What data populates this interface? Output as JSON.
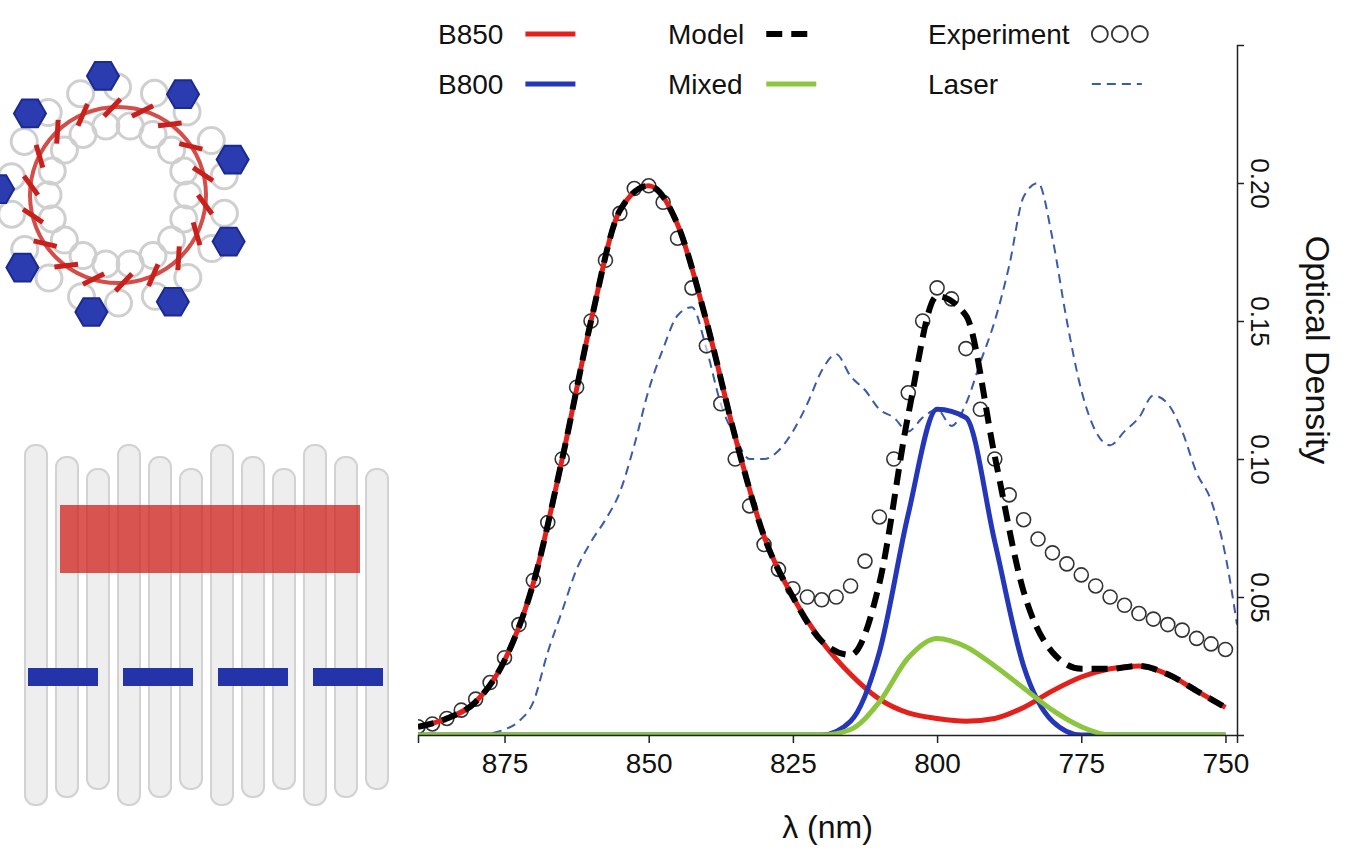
{
  "chart_data": {
    "type": "line",
    "xlabel": "λ (nm)",
    "ylabel": "Optical Density",
    "xlim": [
      890,
      748
    ],
    "xticks": [
      875,
      850,
      825,
      800,
      775,
      750
    ],
    "ylim": [
      0,
      0.25
    ],
    "yticks": [
      0.05,
      {
        "value": 0.1,
        "label": "0.10"
      },
      0.15,
      {
        "value": 0.2,
        "label": "0.20"
      }
    ],
    "grid": false,
    "legend": "top",
    "series": [
      {
        "name": "B850",
        "color": "#e3211c",
        "line_style": "solid",
        "x": [
          890,
          885,
          880,
          875,
          870,
          865,
          860,
          855,
          850,
          845,
          840,
          835,
          830,
          825,
          820,
          815,
          810,
          805,
          800,
          795,
          790,
          785,
          780,
          775,
          770,
          765,
          760,
          755,
          750
        ],
        "values": [
          0.003,
          0.006,
          0.012,
          0.027,
          0.055,
          0.1,
          0.15,
          0.19,
          0.199,
          0.185,
          0.15,
          0.108,
          0.072,
          0.05,
          0.034,
          0.022,
          0.013,
          0.008,
          0.006,
          0.005,
          0.006,
          0.01,
          0.016,
          0.021,
          0.024,
          0.025,
          0.022,
          0.016,
          0.01
        ]
      },
      {
        "name": "B800",
        "color": "#2337b8",
        "line_style": "solid",
        "x": [
          890,
          885,
          880,
          875,
          870,
          865,
          860,
          855,
          850,
          845,
          840,
          835,
          830,
          825,
          820,
          815,
          810,
          805,
          800,
          795,
          790,
          785,
          780,
          775,
          770,
          765,
          760,
          755,
          750
        ],
        "values": [
          0,
          0,
          0,
          0,
          0,
          0,
          0,
          0,
          0,
          0,
          0,
          0,
          0,
          0,
          0,
          0.005,
          0.03,
          0.08,
          0.118,
          0.115,
          0.07,
          0.025,
          0.005,
          0,
          0,
          0,
          0,
          0,
          0
        ]
      },
      {
        "name": "Model",
        "color": "#000000",
        "line_style": "dashed",
        "x": [
          890,
          885,
          880,
          875,
          870,
          865,
          860,
          855,
          850,
          845,
          840,
          835,
          830,
          825,
          820,
          815,
          810,
          805,
          800,
          795,
          790,
          785,
          780,
          775,
          770,
          765,
          760,
          755,
          750
        ],
        "values": [
          0.003,
          0.006,
          0.012,
          0.027,
          0.055,
          0.1,
          0.15,
          0.19,
          0.199,
          0.185,
          0.15,
          0.108,
          0.072,
          0.05,
          0.034,
          0.029,
          0.055,
          0.116,
          0.159,
          0.152,
          0.101,
          0.052,
          0.03,
          0.024,
          0.024,
          0.025,
          0.022,
          0.016,
          0.01
        ]
      },
      {
        "name": "Mixed",
        "color": "#8cc63e",
        "line_style": "solid",
        "x": [
          890,
          885,
          880,
          875,
          870,
          865,
          860,
          855,
          850,
          845,
          840,
          835,
          830,
          825,
          820,
          815,
          810,
          805,
          800,
          795,
          790,
          785,
          780,
          775,
          770,
          765,
          760,
          755,
          750
        ],
        "values": [
          0,
          0,
          0,
          0,
          0,
          0,
          0,
          0,
          0,
          0,
          0,
          0,
          0,
          0,
          0,
          0.002,
          0.012,
          0.028,
          0.035,
          0.032,
          0.025,
          0.017,
          0.009,
          0.003,
          0,
          0,
          0,
          0,
          0
        ]
      },
      {
        "name": "Experiment",
        "color": "#333333",
        "marker": "circle",
        "x": [
          890,
          887.5,
          885,
          882.5,
          880,
          877.5,
          875,
          872.5,
          870,
          867.5,
          865,
          862.5,
          860,
          857.5,
          855,
          852.5,
          850,
          847.5,
          845,
          842.5,
          840,
          837.5,
          835,
          832.5,
          830,
          827.5,
          825,
          822.5,
          820,
          817.5,
          815,
          812.5,
          810,
          807.5,
          805,
          802.5,
          800,
          797.5,
          795,
          792.5,
          790,
          787.5,
          785,
          782.5,
          780,
          777.5,
          775,
          772.5,
          770,
          767.5,
          765,
          762.5,
          760,
          757.5,
          755,
          752.5,
          750
        ],
        "values": [
          0.003,
          0.004,
          0.006,
          0.009,
          0.013,
          0.019,
          0.028,
          0.04,
          0.056,
          0.077,
          0.1,
          0.126,
          0.15,
          0.172,
          0.189,
          0.198,
          0.199,
          0.193,
          0.18,
          0.162,
          0.141,
          0.12,
          0.1,
          0.083,
          0.069,
          0.06,
          0.053,
          0.05,
          0.049,
          0.05,
          0.054,
          0.063,
          0.079,
          0.1,
          0.124,
          0.15,
          0.162,
          0.158,
          0.14,
          0.118,
          0.1,
          0.087,
          0.078,
          0.071,
          0.066,
          0.062,
          0.058,
          0.054,
          0.05,
          0.047,
          0.044,
          0.042,
          0.04,
          0.038,
          0.035,
          0.033,
          0.031
        ]
      },
      {
        "name": "Laser",
        "color": "#3b5ba9",
        "line_style": "dashed",
        "x": [
          890,
          885,
          880,
          875,
          872.5,
          870,
          867.5,
          865,
          862.5,
          860,
          857.5,
          855,
          852.5,
          850,
          847.5,
          845,
          842.5,
          840,
          837.5,
          835,
          832.5,
          830,
          827.5,
          825,
          822.5,
          820,
          817.5,
          815,
          812.5,
          810,
          807.5,
          805,
          802.5,
          800,
          797.5,
          795,
          792.5,
          790,
          787.5,
          785,
          782.5,
          780,
          777.5,
          775,
          772.5,
          770,
          767.5,
          765,
          762.5,
          760,
          757.5,
          755,
          752.5,
          750,
          748
        ],
        "values": [
          0,
          0,
          0,
          0.002,
          0.005,
          0.012,
          0.03,
          0.045,
          0.06,
          0.07,
          0.078,
          0.088,
          0.105,
          0.125,
          0.14,
          0.152,
          0.155,
          0.14,
          0.12,
          0.108,
          0.1,
          0.1,
          0.103,
          0.11,
          0.12,
          0.132,
          0.138,
          0.13,
          0.125,
          0.118,
          0.115,
          0.11,
          0.115,
          0.118,
          0.112,
          0.12,
          0.135,
          0.15,
          0.17,
          0.195,
          0.2,
          0.18,
          0.15,
          0.125,
          0.11,
          0.105,
          0.11,
          0.115,
          0.123,
          0.12,
          0.11,
          0.095,
          0.085,
          0.065,
          0.04
        ]
      }
    ]
  }
}
